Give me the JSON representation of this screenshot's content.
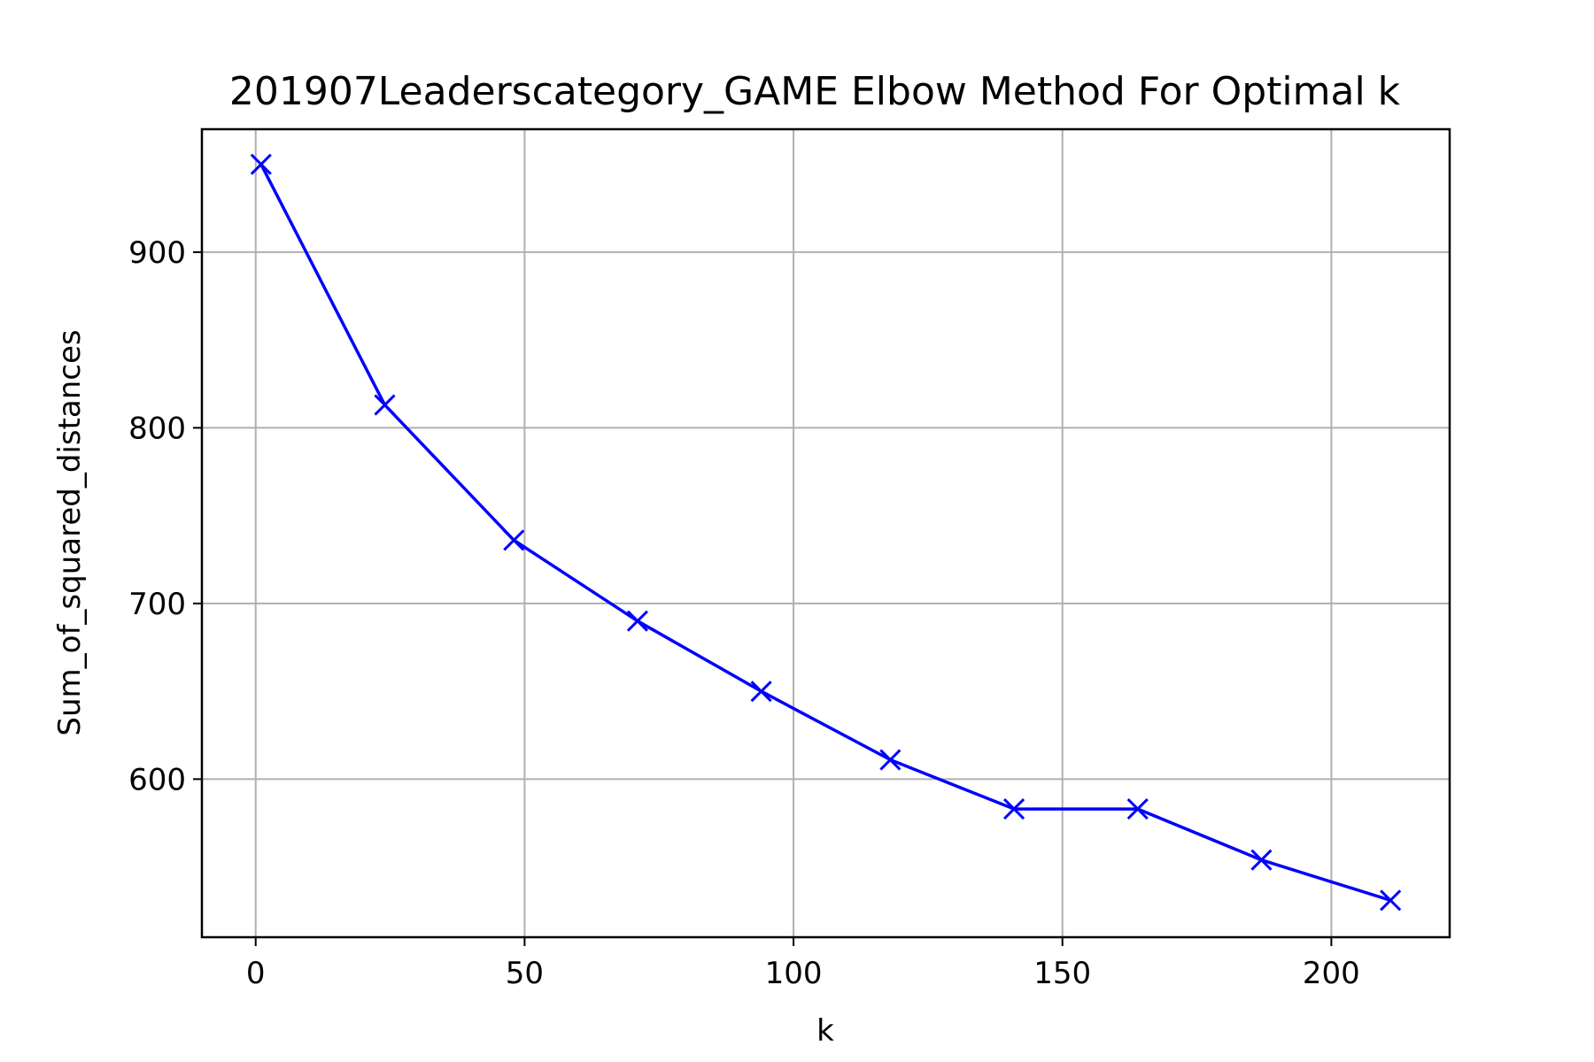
{
  "chart_data": {
    "type": "line",
    "title": "201907Leaderscategory_GAME Elbow Method For Optimal k",
    "xlabel": "k",
    "ylabel": "Sum_of_squared_distances",
    "xlim": [
      -10,
      222
    ],
    "ylim": [
      510,
      970
    ],
    "xticks": [
      0,
      50,
      100,
      150,
      200
    ],
    "yticks": [
      600,
      700,
      800,
      900
    ],
    "grid": true,
    "series": [
      {
        "color": "#0000ff",
        "marker": "x",
        "x": [
          1,
          24,
          48,
          71,
          94,
          118,
          141,
          164,
          187,
          211
        ],
        "y": [
          950,
          813,
          736,
          690,
          650,
          611,
          583,
          583,
          554,
          531
        ]
      }
    ]
  }
}
